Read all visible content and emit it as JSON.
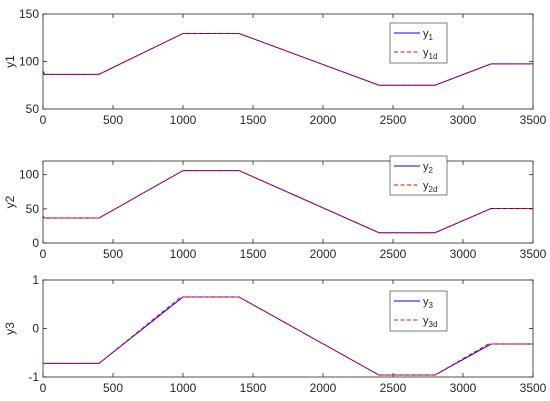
{
  "chart_data": [
    {
      "type": "line",
      "ylabel": "y1",
      "xlim": [
        0,
        3500
      ],
      "ylim": [
        50,
        150
      ],
      "xticks": [
        0,
        500,
        1000,
        1500,
        2000,
        2500,
        3000,
        3500
      ],
      "yticks": [
        50,
        100,
        150
      ],
      "legend_position": "top-right",
      "series": [
        {
          "name_main": "y",
          "name_sub": "1",
          "color": "#0000ff",
          "style": "solid",
          "x": [
            0,
            8,
            15,
            400,
            1000,
            1400,
            2400,
            2800,
            3200,
            3500
          ],
          "y": [
            90,
            87,
            86.5,
            86.5,
            129.5,
            129.5,
            75,
            75,
            97.5,
            97.5
          ]
        },
        {
          "name_main": "y",
          "name_sub": "1d",
          "color": "#ff0000",
          "style": "dashed",
          "x": [
            0,
            400,
            1000,
            1400,
            2400,
            2800,
            3200,
            3500
          ],
          "y": [
            86.5,
            86.5,
            129.5,
            129.5,
            75,
            75,
            97.5,
            97.5
          ]
        }
      ]
    },
    {
      "type": "line",
      "ylabel": "y2",
      "xlim": [
        0,
        3500
      ],
      "ylim": [
        0,
        120
      ],
      "xticks": [
        0,
        500,
        1000,
        1500,
        2000,
        2500,
        3000,
        3500
      ],
      "yticks": [
        0,
        50,
        100
      ],
      "legend_position": "top-right",
      "series": [
        {
          "name_main": "y",
          "name_sub": "2",
          "color": "#0000ff",
          "style": "solid",
          "x": [
            0,
            10,
            400,
            1000,
            1400,
            2400,
            2800,
            3200,
            3500
          ],
          "y": [
            39,
            36.5,
            36.5,
            106,
            106,
            15,
            15,
            50.5,
            50.5
          ]
        },
        {
          "name_main": "y",
          "name_sub": "2d",
          "color": "#ff0000",
          "style": "dashed",
          "x": [
            0,
            400,
            1000,
            1400,
            2400,
            2800,
            3200,
            3500
          ],
          "y": [
            36.5,
            36.5,
            106,
            106,
            15,
            15,
            50.5,
            50.5
          ]
        }
      ]
    },
    {
      "type": "line",
      "ylabel": "y3",
      "xlim": [
        0,
        3500
      ],
      "ylim": [
        -1,
        1
      ],
      "xticks": [
        0,
        500,
        1000,
        1500,
        2000,
        2500,
        3000,
        3500
      ],
      "yticks": [
        -1,
        0,
        1
      ],
      "legend_position": "top-right",
      "series": [
        {
          "name_main": "y",
          "name_sub": "3",
          "color": "#0000ff",
          "style": "solid",
          "x": [
            0,
            400,
            1000,
            1400,
            2400,
            2800,
            3200,
            3500
          ],
          "y": [
            -0.72,
            -0.72,
            0.65,
            0.65,
            -0.96,
            -0.96,
            -0.32,
            -0.32
          ]
        },
        {
          "name_main": "y",
          "name_sub": "3d",
          "color": "#ff0000",
          "style": "dashed",
          "x": [
            0,
            400,
            985,
            1400,
            2400,
            2800,
            3180,
            3500
          ],
          "y": [
            -0.72,
            -0.72,
            0.65,
            0.65,
            -0.96,
            -0.96,
            -0.32,
            -0.32
          ]
        }
      ]
    }
  ]
}
